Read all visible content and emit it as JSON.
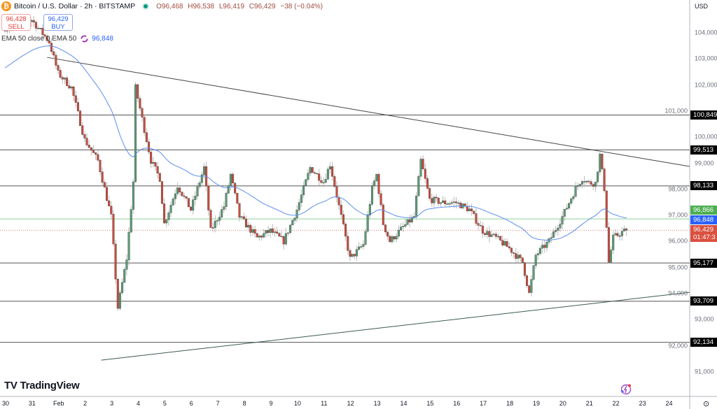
{
  "header": {
    "symbol_icon": "bitcoin-icon",
    "title": "Bitcoin / U.S. Dollar · 2h · BITSTAMP",
    "market_status": "market-open-dot",
    "ohlc": {
      "open": "O96,468",
      "high": "H96,538",
      "low": "L96,419",
      "close": "C96,429",
      "change": "−38 (−0.04%)"
    }
  },
  "trade": {
    "sell_price": "96,428",
    "sell_label": "SELL",
    "buy_price": "96,429",
    "buy_label": "BUY"
  },
  "indicator": {
    "label": "EMA 50 close 0 EMA 50",
    "icon": "loading-icon",
    "value": "96,848"
  },
  "axis": {
    "currency": "USD",
    "price_ticks": [
      "104,000",
      "103,000",
      "102,000",
      "101,000",
      "100,000",
      "99,000",
      "98,000",
      "97,000",
      "96,000",
      "95,000",
      "94,000",
      "93,000",
      "92,000",
      "91,000"
    ],
    "time_ticks": [
      "30",
      "31",
      "Feb",
      "2",
      "3",
      "4",
      "5",
      "6",
      "7",
      "8",
      "9",
      "10",
      "11",
      "12",
      "13",
      "14",
      "15",
      "16",
      "17",
      "18",
      "19",
      "20",
      "21",
      "22",
      "23",
      "24"
    ]
  },
  "levels": [
    {
      "label": "100,849",
      "value": 100849,
      "color": "#000000"
    },
    {
      "label": "99,513",
      "value": 99513,
      "color": "#000000"
    },
    {
      "label": "98,133",
      "value": 98133,
      "color": "#000000"
    },
    {
      "label": "95,177",
      "value": 95177,
      "color": "#000000"
    },
    {
      "label": "93,709",
      "value": 93709,
      "color": "#000000"
    },
    {
      "label": "92,134",
      "value": 92134,
      "color": "#000000"
    }
  ],
  "price_badges": {
    "green_line": {
      "label": "96,866",
      "value": 96866,
      "color": "#4caf50"
    },
    "ema": {
      "label": "96,848",
      "value": 96848,
      "color": "#2962ff"
    },
    "last": {
      "label": "96,429",
      "countdown": "01:47:3",
      "value": 96429,
      "color": "#d9503f"
    }
  },
  "trendlines": [
    {
      "name": "descending-resistance",
      "from": [
        "01-31 14:00",
        103060
      ],
      "to": [
        "02-24 19:00",
        98880
      ],
      "color": "#444444"
    },
    {
      "name": "ascending-support",
      "from": [
        "02-02 15:00",
        91450
      ],
      "to": [
        "02-24 19:00",
        94050
      ],
      "color": "#3d5c4a"
    }
  ],
  "chart_data": {
    "type": "candlestick",
    "interval": "2h",
    "ylim": [
      90600,
      105100
    ],
    "colors": {
      "up": "#5a9e78",
      "down": "#cf4b3b",
      "ema": "#5b8def"
    },
    "close_path": [
      [
        "01-30 00:00",
        104200
      ],
      [
        "01-31 00:00",
        104500
      ],
      [
        "01-31 16:00",
        103650
      ],
      [
        "02-01 00:00",
        102450
      ],
      [
        "02-01 12:00",
        101900
      ],
      [
        "02-02 00:00",
        99900
      ],
      [
        "02-02 12:00",
        99100
      ],
      [
        "02-03 00:00",
        96950
      ],
      [
        "02-03 06:00",
        93460
      ],
      [
        "02-03 14:00",
        95340
      ],
      [
        "02-03 20:00",
        98290
      ],
      [
        "02-03 22:00",
        101900
      ],
      [
        "02-04 12:00",
        99100
      ],
      [
        "02-04 20:00",
        98420
      ],
      [
        "02-05 00:00",
        96680
      ],
      [
        "02-05 12:00",
        98150
      ],
      [
        "02-06 00:00",
        97220
      ],
      [
        "02-06 12:00",
        98830
      ],
      [
        "02-06 18:00",
        96410
      ],
      [
        "02-07 06:00",
        97350
      ],
      [
        "02-07 12:00",
        98560
      ],
      [
        "02-07 20:00",
        96950
      ],
      [
        "02-08 12:00",
        96140
      ],
      [
        "02-09 00:00",
        96410
      ],
      [
        "02-09 12:00",
        96010
      ],
      [
        "02-10 00:00",
        97220
      ],
      [
        "02-10 12:00",
        98830
      ],
      [
        "02-11 00:00",
        98290
      ],
      [
        "02-11 06:00",
        98960
      ],
      [
        "02-11 16:00",
        96950
      ],
      [
        "02-12 00:00",
        95340
      ],
      [
        "02-12 12:00",
        95880
      ],
      [
        "02-12 20:00",
        98030
      ],
      [
        "02-13 00:00",
        98560
      ],
      [
        "02-13 06:00",
        96680
      ],
      [
        "02-13 12:00",
        96010
      ],
      [
        "02-14 00:00",
        96550
      ],
      [
        "02-14 10:00",
        96950
      ],
      [
        "02-14 16:00",
        99100
      ],
      [
        "02-15 00:00",
        97620
      ],
      [
        "02-15 12:00",
        97490
      ],
      [
        "02-16 00:00",
        97490
      ],
      [
        "02-16 12:00",
        97220
      ],
      [
        "02-17 00:00",
        96410
      ],
      [
        "02-17 12:00",
        96140
      ],
      [
        "02-18 00:00",
        95740
      ],
      [
        "02-18 12:00",
        95200
      ],
      [
        "02-18 18:00",
        94000
      ],
      [
        "02-19 00:00",
        95470
      ],
      [
        "02-19 12:00",
        96010
      ],
      [
        "02-20 00:00",
        96950
      ],
      [
        "02-20 12:00",
        98030
      ],
      [
        "02-20 18:00",
        98420
      ],
      [
        "02-21 00:00",
        98240
      ],
      [
        "02-21 06:00",
        98240
      ],
      [
        "02-21 10:00",
        99310
      ],
      [
        "02-21 14:00",
        98030
      ],
      [
        "02-21 18:00",
        95200
      ],
      [
        "02-21 22:00",
        96140
      ],
      [
        "02-22 06:00",
        96360
      ],
      [
        "02-22 10:00",
        96429
      ]
    ]
  },
  "branding": {
    "logo_text": "TradingView",
    "logo_mark": "tradingview-logo",
    "settings_icon": "gear-icon",
    "assistant_icon": "lightning-icon"
  }
}
